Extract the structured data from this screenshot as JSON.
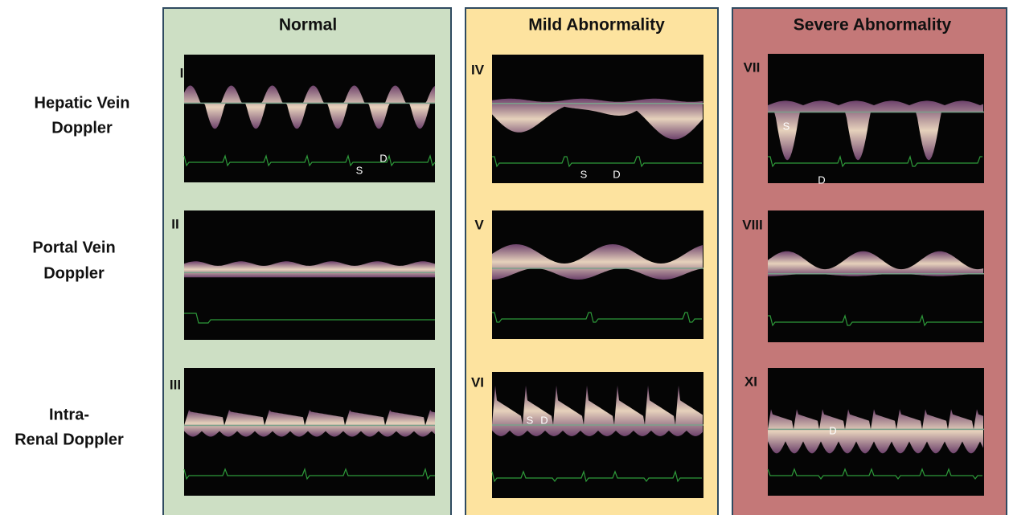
{
  "columns": [
    {
      "title": "Normal"
    },
    {
      "title": "Mild Abnormality"
    },
    {
      "title": "Severe Abnormality"
    }
  ],
  "rows": [
    {
      "lines": [
        "Hepatic Vein",
        "Doppler"
      ]
    },
    {
      "lines": [
        "Portal Vein",
        "Doppler"
      ]
    },
    {
      "lines": [
        "Intra-",
        "Renal Doppler"
      ]
    }
  ],
  "panels": [
    {
      "label": "I",
      "markers": [
        "S",
        "D"
      ]
    },
    {
      "label": "II"
    },
    {
      "label": "III"
    },
    {
      "label": "IV",
      "markers": [
        "S",
        "D"
      ]
    },
    {
      "label": "V"
    },
    {
      "label": "VI",
      "markers": [
        "S",
        "D"
      ]
    },
    {
      "label": "VII",
      "markers": [
        "S",
        "D"
      ]
    },
    {
      "label": "VIII"
    },
    {
      "label": "XI",
      "markers": [
        "D"
      ]
    }
  ]
}
